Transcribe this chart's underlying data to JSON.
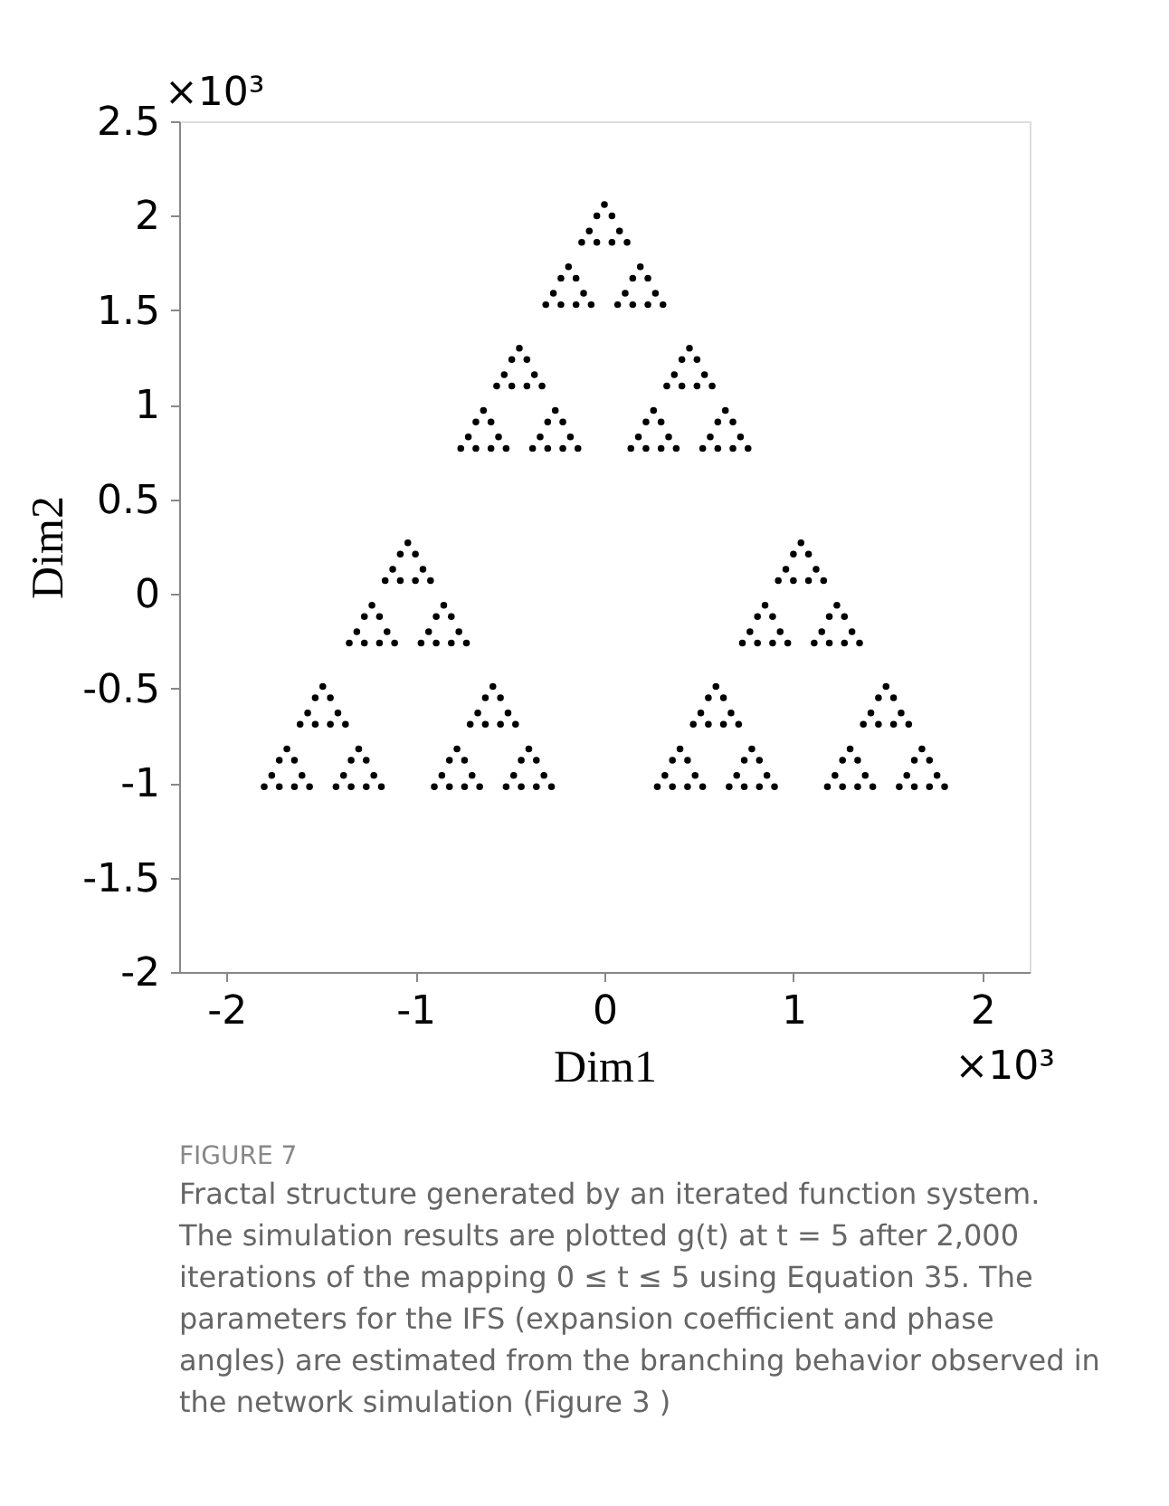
{
  "chart_data": {
    "type": "scatter",
    "xlabel": "Dim1",
    "ylabel": "Dim2",
    "xlim": [
      -2.25,
      2.25
    ],
    "ylim": [
      -2,
      2.5
    ],
    "xticks": [
      -2,
      -1,
      0,
      1,
      2
    ],
    "yticks": [
      -2,
      -1.5,
      -1,
      -0.5,
      0,
      0.5,
      1,
      1.5,
      2,
      2.5
    ],
    "grid": false,
    "legend": false,
    "marker": "circle",
    "annotations": [
      "×10³",
      "×10³",
      "FIGURE 7",
      "Fractal structure generated by an iterated function system. The simulation results are plotted g(t) at t = 5 after 2,000 iterations of the mapping 0 ≤ t ≤ 5 using Equation 35. The parameters for the IFS (expansion coefficient and phase angles) are estimated from the branching behavior observed in the network simulation (Figure 3 )"
    ],
    "series": [
      {
        "color": "#000000",
        "x": [
          0,
          -0.04,
          0.04,
          -0.08,
          -0.12,
          -0.04,
          0.08,
          0.04,
          0.12
        ],
        "values": [
          2.06,
          2.0,
          2.0,
          1.92,
          1.86,
          1.86,
          1.92,
          1.86,
          1.86
        ]
      },
      {
        "color": "#000000",
        "x": [
          -0.19,
          -0.23,
          -0.15,
          -0.27,
          -0.31,
          -0.23,
          -0.11,
          -0.15,
          -0.07
        ],
        "values": [
          1.73,
          1.67,
          1.67,
          1.59,
          1.53,
          1.53,
          1.59,
          1.53,
          1.53
        ]
      },
      {
        "color": "#000000",
        "x": [
          0.19,
          0.15,
          0.23,
          0.11,
          0.07,
          0.15,
          0.27,
          0.23,
          0.31
        ],
        "values": [
          1.73,
          1.67,
          1.67,
          1.59,
          1.53,
          1.53,
          1.59,
          1.53,
          1.53
        ]
      },
      {
        "color": "#000000",
        "x": [
          -0.45,
          -0.49,
          -0.41,
          -0.53,
          -0.57,
          -0.49,
          -0.37,
          -0.41,
          -0.33
        ],
        "values": [
          1.3,
          1.24,
          1.24,
          1.16,
          1.1,
          1.1,
          1.16,
          1.1,
          1.1
        ]
      },
      {
        "color": "#000000",
        "x": [
          -0.64,
          -0.68,
          -0.6,
          -0.72,
          -0.76,
          -0.68,
          -0.56,
          -0.6,
          -0.52
        ],
        "values": [
          0.97,
          0.91,
          0.91,
          0.83,
          0.77,
          0.77,
          0.83,
          0.77,
          0.77
        ]
      },
      {
        "color": "#000000",
        "x": [
          -0.26,
          -0.3,
          -0.22,
          -0.34,
          -0.38,
          -0.3,
          -0.18,
          -0.22,
          -0.14
        ],
        "values": [
          0.97,
          0.91,
          0.91,
          0.83,
          0.77,
          0.77,
          0.83,
          0.77,
          0.77
        ]
      },
      {
        "color": "#000000",
        "x": [
          0.45,
          0.41,
          0.49,
          0.37,
          0.33,
          0.41,
          0.53,
          0.49,
          0.57
        ],
        "values": [
          1.3,
          1.24,
          1.24,
          1.16,
          1.1,
          1.1,
          1.16,
          1.1,
          1.1
        ]
      },
      {
        "color": "#000000",
        "x": [
          0.26,
          0.22,
          0.3,
          0.18,
          0.14,
          0.22,
          0.34,
          0.3,
          0.38
        ],
        "values": [
          0.97,
          0.91,
          0.91,
          0.83,
          0.77,
          0.77,
          0.83,
          0.77,
          0.77
        ]
      },
      {
        "color": "#000000",
        "x": [
          0.64,
          0.6,
          0.68,
          0.56,
          0.52,
          0.6,
          0.72,
          0.68,
          0.76
        ],
        "values": [
          0.97,
          0.91,
          0.91,
          0.83,
          0.77,
          0.77,
          0.83,
          0.77,
          0.77
        ]
      },
      {
        "color": "#000000",
        "x": [
          -1.04,
          -1.08,
          -1.0,
          -1.12,
          -1.16,
          -1.08,
          -0.96,
          -1.0,
          -0.92
        ],
        "values": [
          0.27,
          0.21,
          0.21,
          0.13,
          0.07,
          0.07,
          0.13,
          0.07,
          0.07
        ]
      },
      {
        "color": "#000000",
        "x": [
          -1.23,
          -1.27,
          -1.19,
          -1.31,
          -1.35,
          -1.27,
          -1.15,
          -1.19,
          -1.11
        ],
        "values": [
          -0.06,
          -0.12,
          -0.12,
          -0.2,
          -0.26,
          -0.26,
          -0.2,
          -0.26,
          -0.26
        ]
      },
      {
        "color": "#000000",
        "x": [
          -0.85,
          -0.89,
          -0.81,
          -0.93,
          -0.97,
          -0.89,
          -0.77,
          -0.81,
          -0.73
        ],
        "values": [
          -0.06,
          -0.12,
          -0.12,
          -0.2,
          -0.26,
          -0.26,
          -0.2,
          -0.26,
          -0.26
        ]
      },
      {
        "color": "#000000",
        "x": [
          -1.49,
          -1.53,
          -1.45,
          -1.57,
          -1.61,
          -1.53,
          -1.41,
          -1.45,
          -1.37
        ],
        "values": [
          -0.49,
          -0.55,
          -0.55,
          -0.63,
          -0.69,
          -0.69,
          -0.63,
          -0.69,
          -0.69
        ]
      },
      {
        "color": "#000000",
        "x": [
          -1.68,
          -1.72,
          -1.64,
          -1.76,
          -1.8,
          -1.72,
          -1.6,
          -1.64,
          -1.56
        ],
        "values": [
          -0.82,
          -0.88,
          -0.88,
          -0.96,
          -1.02,
          -1.02,
          -0.96,
          -1.02,
          -1.02
        ]
      },
      {
        "color": "#000000",
        "x": [
          -1.3,
          -1.34,
          -1.26,
          -1.38,
          -1.42,
          -1.34,
          -1.22,
          -1.26,
          -1.18
        ],
        "values": [
          -0.82,
          -0.88,
          -0.88,
          -0.96,
          -1.02,
          -1.02,
          -0.96,
          -1.02,
          -1.02
        ]
      },
      {
        "color": "#000000",
        "x": [
          -0.59,
          -0.63,
          -0.55,
          -0.67,
          -0.71,
          -0.63,
          -0.51,
          -0.55,
          -0.47
        ],
        "values": [
          -0.49,
          -0.55,
          -0.55,
          -0.63,
          -0.69,
          -0.69,
          -0.63,
          -0.69,
          -0.69
        ]
      },
      {
        "color": "#000000",
        "x": [
          -0.78,
          -0.82,
          -0.74,
          -0.86,
          -0.9,
          -0.82,
          -0.7,
          -0.74,
          -0.66
        ],
        "values": [
          -0.82,
          -0.88,
          -0.88,
          -0.96,
          -1.02,
          -1.02,
          -0.96,
          -1.02,
          -1.02
        ]
      },
      {
        "color": "#000000",
        "x": [
          -0.4,
          -0.44,
          -0.36,
          -0.48,
          -0.52,
          -0.44,
          -0.32,
          -0.36,
          -0.28
        ],
        "values": [
          -0.82,
          -0.88,
          -0.88,
          -0.96,
          -1.02,
          -1.02,
          -0.96,
          -1.02,
          -1.02
        ]
      },
      {
        "color": "#000000",
        "x": [
          1.04,
          1.0,
          1.08,
          0.96,
          0.92,
          1.0,
          1.12,
          1.08,
          1.16
        ],
        "values": [
          0.27,
          0.21,
          0.21,
          0.13,
          0.07,
          0.07,
          0.13,
          0.07,
          0.07
        ]
      },
      {
        "color": "#000000",
        "x": [
          0.85,
          0.81,
          0.89,
          0.77,
          0.73,
          0.81,
          0.93,
          0.89,
          0.97
        ],
        "values": [
          -0.06,
          -0.12,
          -0.12,
          -0.2,
          -0.26,
          -0.26,
          -0.2,
          -0.26,
          -0.26
        ]
      },
      {
        "color": "#000000",
        "x": [
          1.23,
          1.19,
          1.27,
          1.15,
          1.11,
          1.19,
          1.31,
          1.27,
          1.35
        ],
        "values": [
          -0.06,
          -0.12,
          -0.12,
          -0.2,
          -0.26,
          -0.26,
          -0.2,
          -0.26,
          -0.26
        ]
      },
      {
        "color": "#000000",
        "x": [
          0.59,
          0.55,
          0.63,
          0.51,
          0.47,
          0.55,
          0.67,
          0.63,
          0.71
        ],
        "values": [
          -0.49,
          -0.55,
          -0.55,
          -0.63,
          -0.69,
          -0.69,
          -0.63,
          -0.69,
          -0.69
        ]
      },
      {
        "color": "#000000",
        "x": [
          0.4,
          0.36,
          0.44,
          0.32,
          0.28,
          0.36,
          0.48,
          0.44,
          0.52
        ],
        "values": [
          -0.82,
          -0.88,
          -0.88,
          -0.96,
          -1.02,
          -1.02,
          -0.96,
          -1.02,
          -1.02
        ]
      },
      {
        "color": "#000000",
        "x": [
          0.78,
          0.74,
          0.82,
          0.7,
          0.66,
          0.74,
          0.86,
          0.82,
          0.9
        ],
        "values": [
          -0.82,
          -0.88,
          -0.88,
          -0.96,
          -1.02,
          -1.02,
          -0.96,
          -1.02,
          -1.02
        ]
      },
      {
        "color": "#000000",
        "x": [
          1.49,
          1.45,
          1.53,
          1.41,
          1.37,
          1.45,
          1.57,
          1.53,
          1.61
        ],
        "values": [
          -0.49,
          -0.55,
          -0.55,
          -0.63,
          -0.69,
          -0.69,
          -0.63,
          -0.69,
          -0.69
        ]
      },
      {
        "color": "#000000",
        "x": [
          1.3,
          1.26,
          1.34,
          1.22,
          1.18,
          1.26,
          1.38,
          1.34,
          1.42
        ],
        "values": [
          -0.82,
          -0.88,
          -0.88,
          -0.96,
          -1.02,
          -1.02,
          -0.96,
          -1.02,
          -1.02
        ]
      },
      {
        "color": "#000000",
        "x": [
          1.68,
          1.64,
          1.72,
          1.6,
          1.56,
          1.64,
          1.76,
          1.72,
          1.8
        ],
        "values": [
          -0.82,
          -0.88,
          -0.88,
          -0.96,
          -1.02,
          -1.02,
          -0.96,
          -1.02,
          -1.02
        ]
      }
    ]
  }
}
